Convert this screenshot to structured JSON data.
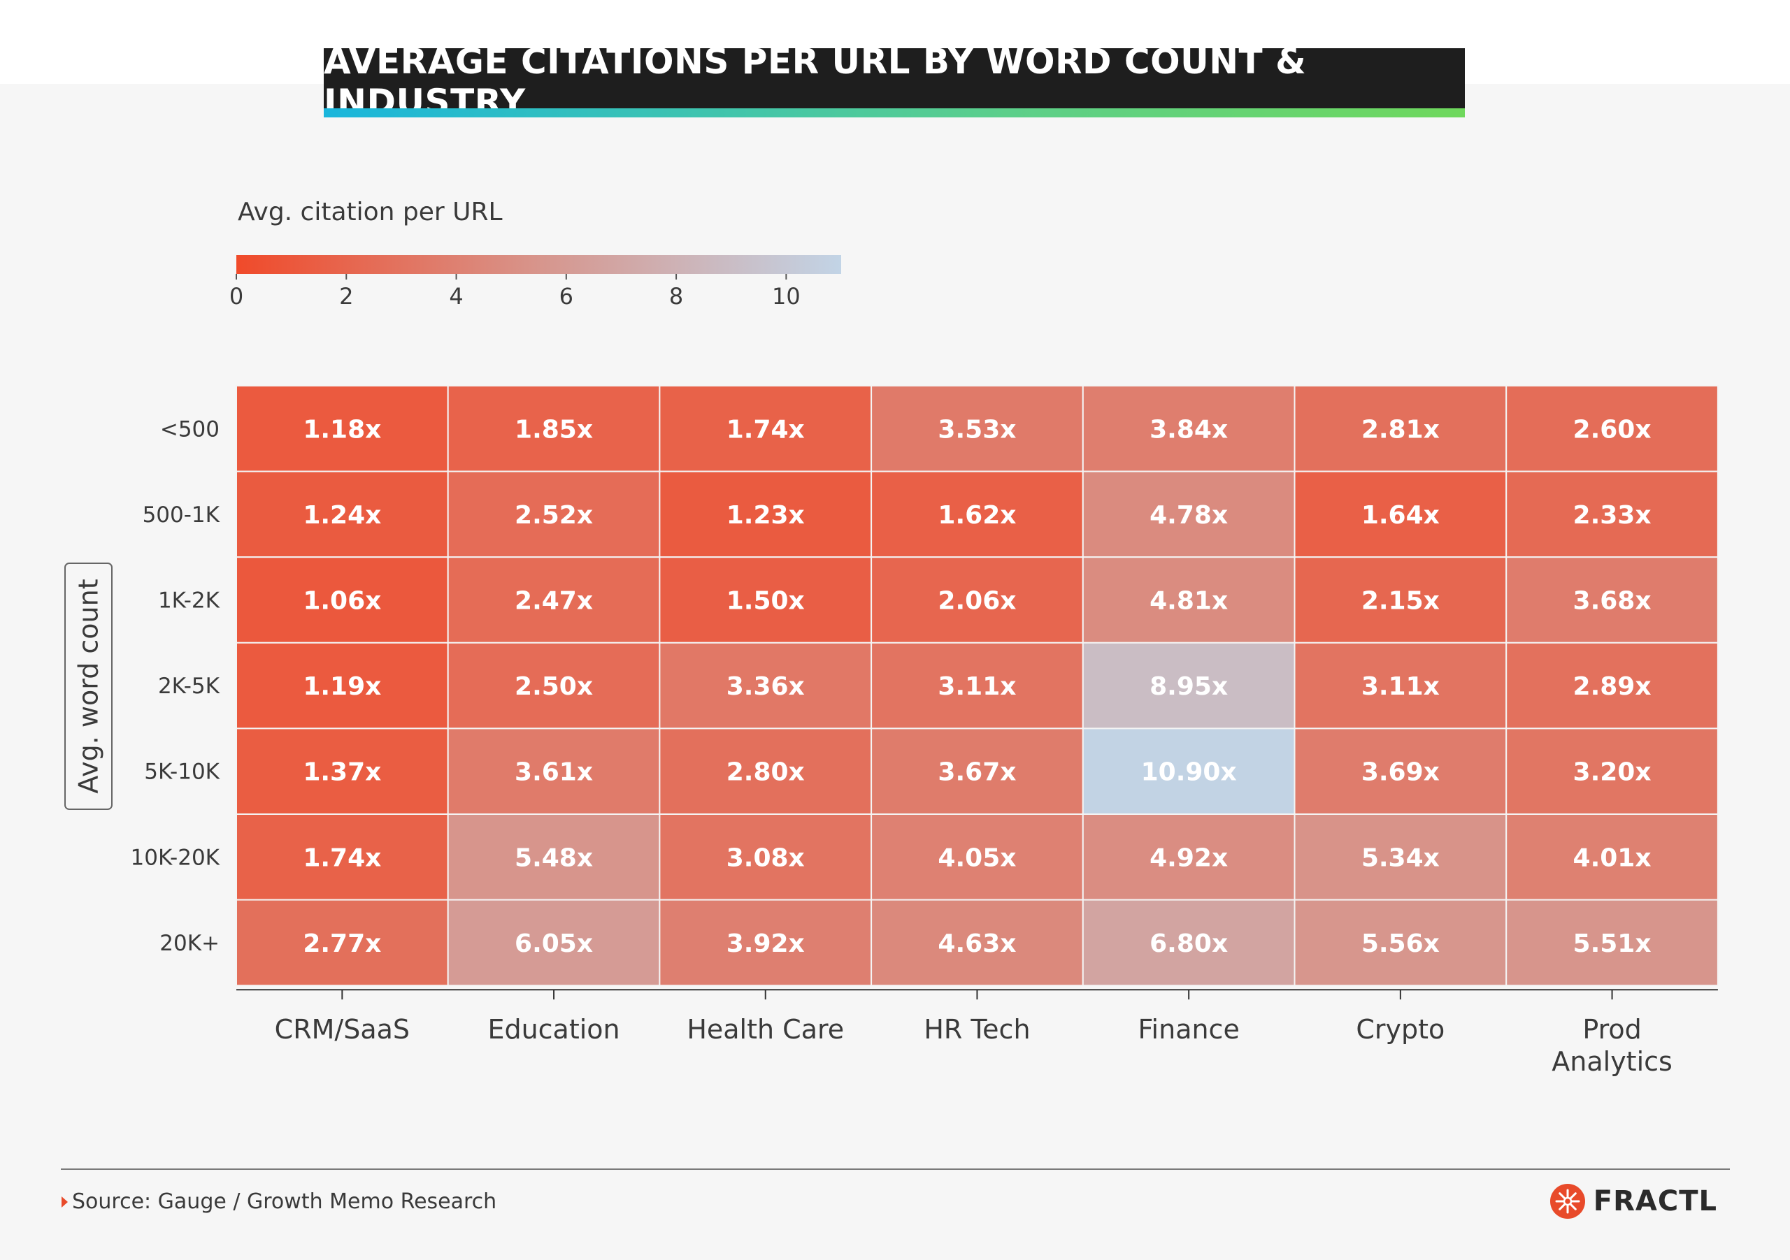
{
  "header": {
    "title": "AVERAGE CITATIONS PER URL BY WORD COUNT & INDUSTRY"
  },
  "legend": {
    "title": "Avg. citation per URL",
    "ticks": [
      "0",
      "2",
      "4",
      "6",
      "8",
      "10"
    ],
    "min": 0,
    "max": 11,
    "gradient_colors": [
      "#f04a2a",
      "#d7958c",
      "#c2d4e6"
    ]
  },
  "chart_data": {
    "type": "heatmap",
    "title": "AVERAGE CITATIONS PER URL BY WORD COUNT & INDUSTRY",
    "xlabel": "",
    "ylabel": "Avg. word count",
    "x_categories": [
      "CRM/SaaS",
      "Education",
      "Health Care",
      "HR Tech",
      "Finance",
      "Crypto",
      "Prod Analytics"
    ],
    "y_categories": [
      "<500",
      "500-1K",
      "1K-2K",
      "2K-5K",
      "5K-10K",
      "10K-20K",
      "20K+"
    ],
    "values": [
      [
        1.18,
        1.85,
        1.74,
        3.53,
        3.84,
        2.81,
        2.6
      ],
      [
        1.24,
        2.52,
        1.23,
        1.62,
        4.78,
        1.64,
        2.33
      ],
      [
        1.06,
        2.47,
        1.5,
        2.06,
        4.81,
        2.15,
        3.68
      ],
      [
        1.19,
        2.5,
        3.36,
        3.11,
        8.95,
        3.11,
        2.89
      ],
      [
        1.37,
        3.61,
        2.8,
        3.67,
        10.9,
        3.69,
        3.2
      ],
      [
        1.74,
        5.48,
        3.08,
        4.05,
        4.92,
        5.34,
        4.01
      ],
      [
        2.77,
        6.05,
        3.92,
        4.63,
        6.8,
        5.56,
        5.51
      ]
    ],
    "cell_labels": [
      [
        "1.18x",
        "1.85x",
        "1.74x",
        "3.53x",
        "3.84x",
        "2.81x",
        "2.60x"
      ],
      [
        "1.24x",
        "2.52x",
        "1.23x",
        "1.62x",
        "4.78x",
        "1.64x",
        "2.33x"
      ],
      [
        "1.06x",
        "2.47x",
        "1.50x",
        "2.06x",
        "4.81x",
        "2.15x",
        "3.68x"
      ],
      [
        "1.19x",
        "2.50x",
        "3.36x",
        "3.11x",
        "8.95x",
        "3.11x",
        "2.89x"
      ],
      [
        "1.37x",
        "3.61x",
        "2.80x",
        "3.67x",
        "10.90x",
        "3.69x",
        "3.20x"
      ],
      [
        "1.74x",
        "5.48x",
        "3.08x",
        "4.05x",
        "4.92x",
        "5.34x",
        "4.01x"
      ],
      [
        "2.77x",
        "6.05x",
        "3.92x",
        "4.63x",
        "6.80x",
        "5.56x",
        "5.51x"
      ]
    ],
    "color_range": [
      0,
      11
    ],
    "legend": "top-left"
  },
  "footer": {
    "source": "Source: Gauge / Growth Memo Research",
    "logo_text": "FRACTL",
    "logo_color": "#e84a2a"
  }
}
